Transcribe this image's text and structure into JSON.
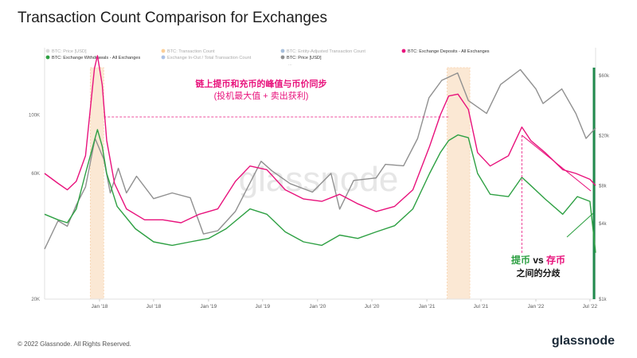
{
  "page": {
    "title": "Transaction Count Comparison for Exchanges",
    "copyright": "© 2022 Glassnode. All Rights Reserved.",
    "brand": "glassnode",
    "watermark": "glassnode"
  },
  "chart_data": {
    "type": "line",
    "title": "Transaction Count Comparison for Exchanges",
    "legend_position": "top",
    "legend": [
      {
        "label": "BTC: Price [USD]",
        "color": "#b0b0b0",
        "faded": true
      },
      {
        "label": "BTC: Transaction Count",
        "color": "#f7931a",
        "faded": true
      },
      {
        "label": "BTC: Entity-Adjusted Transaction Count",
        "color": "#3a6fb0",
        "faded": true
      },
      {
        "label": "BTC: Exchange Deposits - All Exchanges",
        "color": "#e8127c",
        "faded": false
      },
      {
        "label": "BTC: Exchange Withdrawals - All Exchanges",
        "color": "#2ea043",
        "faded": false
      },
      {
        "label": "Exchange In-Out / Total Transaction Count",
        "color": "#4a78c8",
        "faded": true
      },
      {
        "label": "BTC: Price [USD]",
        "color": "#909090",
        "faded": false
      }
    ],
    "legend_extra": "...",
    "x_ticks": [
      "Jan '18",
      "Jul '18",
      "Jan '19",
      "Jul '19",
      "Jan '20",
      "Jul '20",
      "Jan '21",
      "Jul '21",
      "Jan '22",
      "Jul '22"
    ],
    "y_left": {
      "scale": "log",
      "ticks": [
        "20K",
        "60K",
        "100K"
      ],
      "ylim": [
        20000,
        180000
      ]
    },
    "y_right": {
      "scale": "log",
      "ticks": [
        "$1k",
        "$4k",
        "$8k",
        "$20k",
        "$60k"
      ],
      "ylim": [
        1000,
        100000
      ]
    },
    "x_range": [
      "2017-07-01",
      "2022-07-20"
    ],
    "grid": false,
    "highlight_bands": [
      {
        "start": "2017-12-01",
        "end": "2018-01-15",
        "color": "#f9d7b2"
      },
      {
        "start": "2021-03-10",
        "end": "2021-05-25",
        "color": "#f9d7b2"
      }
    ],
    "series": [
      {
        "name": "BTC: Exchange Deposits - All Exchanges",
        "axis": "left",
        "color": "#e8127c",
        "points": [
          [
            "2017-07-01",
            60000
          ],
          [
            "2017-08-15",
            55000
          ],
          [
            "2017-09-15",
            52000
          ],
          [
            "2017-10-15",
            56000
          ],
          [
            "2017-11-15",
            70000
          ],
          [
            "2017-12-15",
            150000
          ],
          [
            "2017-12-25",
            168000
          ],
          [
            "2018-01-10",
            130000
          ],
          [
            "2018-01-25",
            80000
          ],
          [
            "2018-02-20",
            55000
          ],
          [
            "2018-04-01",
            44000
          ],
          [
            "2018-06-01",
            40000
          ],
          [
            "2018-08-01",
            40000
          ],
          [
            "2018-10-01",
            39000
          ],
          [
            "2018-12-01",
            42000
          ],
          [
            "2019-02-01",
            44000
          ],
          [
            "2019-04-01",
            56000
          ],
          [
            "2019-05-20",
            64000
          ],
          [
            "2019-07-15",
            62000
          ],
          [
            "2019-09-15",
            52000
          ],
          [
            "2019-11-15",
            48000
          ],
          [
            "2020-01-15",
            47000
          ],
          [
            "2020-03-15",
            50000
          ],
          [
            "2020-05-15",
            46000
          ],
          [
            "2020-07-15",
            43000
          ],
          [
            "2020-09-15",
            45000
          ],
          [
            "2020-11-15",
            52000
          ],
          [
            "2021-01-10",
            76000
          ],
          [
            "2021-02-15",
            100000
          ],
          [
            "2021-03-15",
            118000
          ],
          [
            "2021-04-15",
            120000
          ],
          [
            "2021-05-20",
            105000
          ],
          [
            "2021-06-20",
            72000
          ],
          [
            "2021-08-01",
            64000
          ],
          [
            "2021-10-01",
            70000
          ],
          [
            "2021-11-15",
            90000
          ],
          [
            "2021-12-15",
            80000
          ],
          [
            "2022-02-01",
            72000
          ],
          [
            "2022-04-01",
            62000
          ],
          [
            "2022-05-15",
            60000
          ],
          [
            "2022-07-01",
            57000
          ],
          [
            "2022-07-20",
            54000
          ]
        ]
      },
      {
        "name": "BTC: Exchange Withdrawals - All Exchanges",
        "axis": "left",
        "color": "#2ea043",
        "points": [
          [
            "2017-07-01",
            42000
          ],
          [
            "2017-08-15",
            40000
          ],
          [
            "2017-09-15",
            39000
          ],
          [
            "2017-10-15",
            44000
          ],
          [
            "2017-11-15",
            60000
          ],
          [
            "2017-12-15",
            80000
          ],
          [
            "2017-12-25",
            88000
          ],
          [
            "2018-01-10",
            76000
          ],
          [
            "2018-01-25",
            60000
          ],
          [
            "2018-03-01",
            45000
          ],
          [
            "2018-05-01",
            37000
          ],
          [
            "2018-07-01",
            33000
          ],
          [
            "2018-09-01",
            32000
          ],
          [
            "2018-11-01",
            33000
          ],
          [
            "2019-01-01",
            34000
          ],
          [
            "2019-03-01",
            37000
          ],
          [
            "2019-05-20",
            44000
          ],
          [
            "2019-07-15",
            42000
          ],
          [
            "2019-09-15",
            36000
          ],
          [
            "2019-11-15",
            33000
          ],
          [
            "2020-01-15",
            32000
          ],
          [
            "2020-03-15",
            35000
          ],
          [
            "2020-05-15",
            34000
          ],
          [
            "2020-07-15",
            36000
          ],
          [
            "2020-09-15",
            38000
          ],
          [
            "2020-11-15",
            44000
          ],
          [
            "2021-01-10",
            60000
          ],
          [
            "2021-02-15",
            72000
          ],
          [
            "2021-03-15",
            80000
          ],
          [
            "2021-04-15",
            84000
          ],
          [
            "2021-05-20",
            82000
          ],
          [
            "2021-06-20",
            60000
          ],
          [
            "2021-08-01",
            50000
          ],
          [
            "2021-10-01",
            49000
          ],
          [
            "2021-11-15",
            58000
          ],
          [
            "2021-12-15",
            54000
          ],
          [
            "2022-02-01",
            48000
          ],
          [
            "2022-04-01",
            42000
          ],
          [
            "2022-05-20",
            49000
          ],
          [
            "2022-07-01",
            47000
          ],
          [
            "2022-07-20",
            30000
          ]
        ]
      },
      {
        "name": "BTC: Price [USD]",
        "axis": "right",
        "color": "#909090",
        "points": [
          [
            "2017-07-01",
            2500
          ],
          [
            "2017-08-15",
            4200
          ],
          [
            "2017-09-15",
            3800
          ],
          [
            "2017-10-15",
            5600
          ],
          [
            "2017-11-15",
            7800
          ],
          [
            "2017-12-17",
            19000
          ],
          [
            "2018-01-15",
            13000
          ],
          [
            "2018-02-06",
            7000
          ],
          [
            "2018-03-05",
            11000
          ],
          [
            "2018-04-01",
            7000
          ],
          [
            "2018-05-05",
            9500
          ],
          [
            "2018-07-01",
            6300
          ],
          [
            "2018-09-01",
            7000
          ],
          [
            "2018-11-01",
            6400
          ],
          [
            "2018-12-15",
            3300
          ],
          [
            "2019-02-01",
            3500
          ],
          [
            "2019-04-01",
            5000
          ],
          [
            "2019-06-26",
            12500
          ],
          [
            "2019-08-01",
            10500
          ],
          [
            "2019-10-01",
            8300
          ],
          [
            "2019-12-15",
            7100
          ],
          [
            "2020-02-15",
            10000
          ],
          [
            "2020-03-15",
            5200
          ],
          [
            "2020-05-01",
            8800
          ],
          [
            "2020-07-15",
            9200
          ],
          [
            "2020-08-15",
            11800
          ],
          [
            "2020-10-15",
            11500
          ],
          [
            "2020-12-01",
            19000
          ],
          [
            "2021-01-08",
            40000
          ],
          [
            "2021-02-20",
            55000
          ],
          [
            "2021-04-14",
            63000
          ],
          [
            "2021-05-20",
            38000
          ],
          [
            "2021-07-20",
            30000
          ],
          [
            "2021-09-05",
            51000
          ],
          [
            "2021-11-10",
            67000
          ],
          [
            "2022-01-01",
            47000
          ],
          [
            "2022-01-25",
            36000
          ],
          [
            "2022-03-29",
            47000
          ],
          [
            "2022-05-15",
            30000
          ],
          [
            "2022-06-18",
            19000
          ],
          [
            "2022-07-20",
            23000
          ]
        ]
      }
    ],
    "annotations": {
      "peak_text_line1": "链上提币和充币的峰值与币价同步",
      "peak_text_line2": "(投机最大值 + 卖出获利)",
      "divergence_part1": "提币",
      "divergence_vs": "vs",
      "divergence_part2": "存币",
      "divergence_line2": "之间的分歧"
    }
  }
}
